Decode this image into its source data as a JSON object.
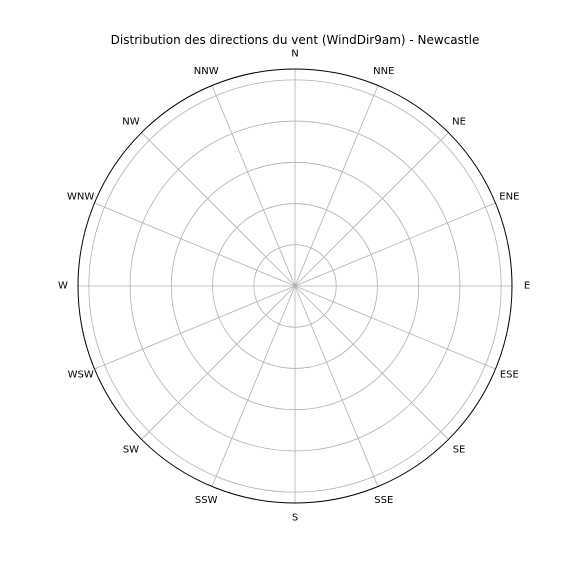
{
  "chart_data": {
    "type": "polar-bar",
    "title": "Distribution des directions du vent (WindDir9am) - Newcastle",
    "categories": [
      "N",
      "NNE",
      "NE",
      "ENE",
      "E",
      "ESE",
      "SE",
      "SSE",
      "S",
      "SSW",
      "SW",
      "WSW",
      "W",
      "WNW",
      "NW",
      "NNW"
    ],
    "values": [
      0,
      0,
      0,
      0,
      0,
      0,
      0,
      0,
      0,
      0,
      0,
      0,
      0,
      0,
      0,
      0
    ],
    "theta_zero_location": "N",
    "theta_direction": "clockwise",
    "grid": true,
    "radial_tick_labels": false
  },
  "colors": {
    "grid": "#b0b0b0",
    "frame": "#000000",
    "text": "#000000",
    "background": "#ffffff"
  }
}
